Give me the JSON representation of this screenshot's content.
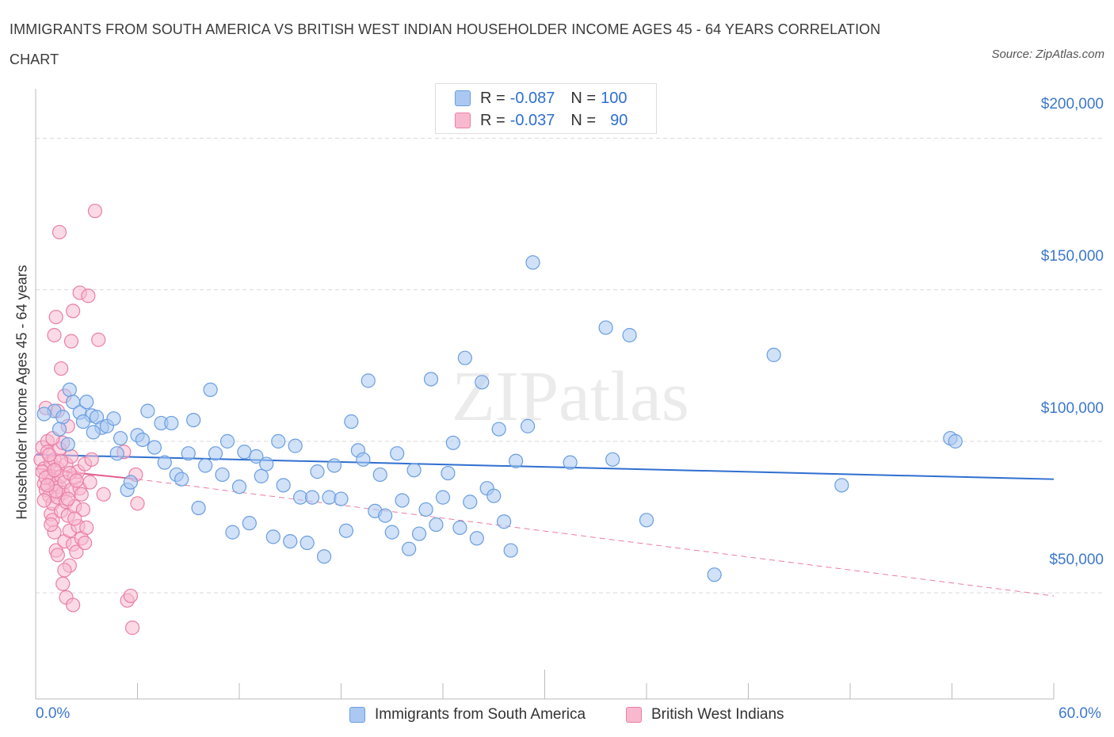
{
  "title": "IMMIGRANTS FROM SOUTH AMERICA VS BRITISH WEST INDIAN HOUSEHOLDER INCOME AGES 45 - 64 YEARS CORRELATION CHART",
  "source": "Source: ZipAtlas.com",
  "watermark": "ZIPatlas",
  "legend": {
    "r_label": "R =",
    "n_label": "N =",
    "rows": [
      {
        "r": "-0.087",
        "n": "100",
        "color": "#aac8f2"
      },
      {
        "r": "-0.037",
        "n": "90",
        "color": "#f8b9cf"
      }
    ]
  },
  "colors": {
    "blue_fill": "#aac8f2",
    "blue_stroke": "#6a9edf",
    "blue_line": "#2f6fd0",
    "pink_fill": "#f8b9cf",
    "pink_stroke": "#ea7fa6",
    "pink_line": "#e45b8d",
    "grid": "#d9d9d9",
    "tick_label": "#3d78cc"
  },
  "chart_data": {
    "type": "scatter",
    "xlabel": "",
    "ylabel": "Householder Income Ages 45 - 64 years",
    "xlim": [
      0,
      60
    ],
    "ylim": [
      15000,
      215000
    ],
    "x_tick_labels": [
      "0.0%",
      "60.0%"
    ],
    "y_ticks": [
      200000,
      150000,
      100000,
      50000
    ],
    "y_tick_labels": [
      "$200,000",
      "$150,000",
      "$100,000",
      "$50,000"
    ],
    "grid": "horizontal dashed",
    "legend_position": "top-center and bottom",
    "series": [
      {
        "name": "Immigrants from South America",
        "color": "#aac8f2",
        "trend": {
          "x": [
            0,
            60
          ],
          "y": [
            95600,
            87500
          ],
          "style": "solid"
        },
        "points": [
          [
            1.1,
            110000
          ],
          [
            1.6,
            108000
          ],
          [
            2.0,
            117000
          ],
          [
            2.2,
            113000
          ],
          [
            2.6,
            109500
          ],
          [
            3.0,
            113000
          ],
          [
            3.3,
            108500
          ],
          [
            3.6,
            108000
          ],
          [
            3.9,
            104500
          ],
          [
            4.2,
            105000
          ],
          [
            4.6,
            107500
          ],
          [
            5.0,
            101000
          ],
          [
            5.4,
            84000
          ],
          [
            5.6,
            86500
          ],
          [
            6.0,
            102000
          ],
          [
            6.3,
            100500
          ],
          [
            6.6,
            110000
          ],
          [
            7.0,
            98000
          ],
          [
            7.4,
            106000
          ],
          [
            7.6,
            93000
          ],
          [
            8.0,
            106000
          ],
          [
            8.3,
            89000
          ],
          [
            8.6,
            87500
          ],
          [
            9.0,
            96000
          ],
          [
            9.3,
            107000
          ],
          [
            9.6,
            78000
          ],
          [
            10.0,
            92000
          ],
          [
            10.3,
            117000
          ],
          [
            10.6,
            96000
          ],
          [
            11.0,
            89000
          ],
          [
            11.3,
            100000
          ],
          [
            11.6,
            70000
          ],
          [
            12.0,
            85000
          ],
          [
            12.3,
            96500
          ],
          [
            12.6,
            73000
          ],
          [
            13.0,
            95000
          ],
          [
            13.3,
            88500
          ],
          [
            13.6,
            92500
          ],
          [
            14.0,
            68500
          ],
          [
            14.3,
            100000
          ],
          [
            14.6,
            85500
          ],
          [
            15.0,
            67000
          ],
          [
            15.3,
            98500
          ],
          [
            15.6,
            81500
          ],
          [
            16.0,
            66500
          ],
          [
            16.3,
            81500
          ],
          [
            16.6,
            90000
          ],
          [
            17.0,
            62000
          ],
          [
            17.3,
            81500
          ],
          [
            17.6,
            92000
          ],
          [
            18.0,
            81000
          ],
          [
            18.3,
            70500
          ],
          [
            18.6,
            106500
          ],
          [
            19.0,
            97000
          ],
          [
            19.3,
            94000
          ],
          [
            19.6,
            120000
          ],
          [
            20.0,
            77000
          ],
          [
            20.3,
            89000
          ],
          [
            20.6,
            75500
          ],
          [
            21.0,
            70000
          ],
          [
            21.3,
            96000
          ],
          [
            21.6,
            80500
          ],
          [
            22.0,
            64500
          ],
          [
            22.3,
            90500
          ],
          [
            22.6,
            69500
          ],
          [
            23.0,
            77500
          ],
          [
            23.3,
            120500
          ],
          [
            23.6,
            72500
          ],
          [
            24.0,
            81500
          ],
          [
            24.3,
            89500
          ],
          [
            24.6,
            99500
          ],
          [
            25.0,
            71500
          ],
          [
            25.3,
            127500
          ],
          [
            25.6,
            80000
          ],
          [
            26.0,
            68000
          ],
          [
            26.3,
            119500
          ],
          [
            26.6,
            84500
          ],
          [
            27.0,
            82000
          ],
          [
            27.3,
            104000
          ],
          [
            27.6,
            73500
          ],
          [
            28.0,
            64000
          ],
          [
            28.3,
            93500
          ],
          [
            29.0,
            105000
          ],
          [
            29.3,
            159000
          ],
          [
            31.5,
            93000
          ],
          [
            33.6,
            137500
          ],
          [
            34.0,
            94000
          ],
          [
            35.0,
            135000
          ],
          [
            36.0,
            74000
          ],
          [
            40.0,
            56000
          ],
          [
            43.5,
            128500
          ],
          [
            47.5,
            85500
          ],
          [
            53.9,
            101000
          ],
          [
            54.2,
            100000
          ],
          [
            0.5,
            109000
          ],
          [
            1.4,
            104000
          ],
          [
            1.9,
            99000
          ],
          [
            2.8,
            106500
          ],
          [
            3.4,
            103000
          ],
          [
            4.8,
            96000
          ]
        ]
      },
      {
        "name": "British West Indians",
        "color": "#f8b9cf",
        "trend": {
          "x": [
            0,
            6
          ],
          "y": [
            91000,
            87500
          ],
          "style": "solid",
          "extended_x": [
            6,
            60
          ],
          "extended_y": [
            87500,
            49000
          ],
          "extended_style": "dashed"
        },
        "points": [
          [
            0.3,
            94000
          ],
          [
            0.4,
            98000
          ],
          [
            0.5,
            91000
          ],
          [
            0.5,
            86000
          ],
          [
            0.6,
            111000
          ],
          [
            0.6,
            84000
          ],
          [
            0.7,
            100000
          ],
          [
            0.7,
            96500
          ],
          [
            0.8,
            88500
          ],
          [
            0.8,
            82000
          ],
          [
            0.9,
            93000
          ],
          [
            0.9,
            76000
          ],
          [
            1.0,
            87500
          ],
          [
            1.0,
            79500
          ],
          [
            1.0,
            74000
          ],
          [
            1.1,
            135000
          ],
          [
            1.1,
            94000
          ],
          [
            1.1,
            70000
          ],
          [
            1.2,
            141000
          ],
          [
            1.2,
            86000
          ],
          [
            1.2,
            64000
          ],
          [
            1.3,
            110000
          ],
          [
            1.3,
            91000
          ],
          [
            1.3,
            81500
          ],
          [
            1.4,
            169000
          ],
          [
            1.4,
            97500
          ],
          [
            1.4,
            85000
          ],
          [
            1.5,
            124000
          ],
          [
            1.5,
            88500
          ],
          [
            1.5,
            77000
          ],
          [
            1.6,
            99500
          ],
          [
            1.6,
            83000
          ],
          [
            1.6,
            53000
          ],
          [
            1.7,
            115000
          ],
          [
            1.7,
            86500
          ],
          [
            1.7,
            67000
          ],
          [
            1.8,
            92500
          ],
          [
            1.8,
            80000
          ],
          [
            1.8,
            48500
          ],
          [
            1.9,
            105000
          ],
          [
            1.9,
            75500
          ],
          [
            2.0,
            70500
          ],
          [
            2.0,
            59000
          ],
          [
            2.1,
            133000
          ],
          [
            2.1,
            95000
          ],
          [
            2.1,
            84000
          ],
          [
            2.2,
            143000
          ],
          [
            2.2,
            66000
          ],
          [
            2.2,
            46000
          ],
          [
            2.3,
            88000
          ],
          [
            2.3,
            78500
          ],
          [
            2.4,
            63500
          ],
          [
            2.5,
            90000
          ],
          [
            2.5,
            72000
          ],
          [
            2.6,
            149000
          ],
          [
            2.6,
            84500
          ],
          [
            2.7,
            68000
          ],
          [
            2.8,
            77500
          ],
          [
            2.9,
            92500
          ],
          [
            3.0,
            71500
          ],
          [
            3.1,
            148000
          ],
          [
            3.3,
            94000
          ],
          [
            3.5,
            176000
          ],
          [
            3.7,
            133500
          ],
          [
            4.0,
            82500
          ],
          [
            5.2,
            96500
          ],
          [
            5.4,
            47500
          ],
          [
            5.6,
            49000
          ],
          [
            5.7,
            38500
          ],
          [
            5.9,
            89000
          ],
          [
            6.0,
            79500
          ],
          [
            0.4,
            90000
          ],
          [
            0.6,
            88000
          ],
          [
            0.8,
            95500
          ],
          [
            0.9,
            72500
          ],
          [
            1.0,
            101000
          ],
          [
            1.2,
            83500
          ],
          [
            1.3,
            62500
          ],
          [
            1.5,
            93500
          ],
          [
            1.7,
            57500
          ],
          [
            1.9,
            81000
          ],
          [
            2.0,
            89500
          ],
          [
            2.3,
            74500
          ],
          [
            2.4,
            87000
          ],
          [
            2.7,
            82500
          ],
          [
            2.9,
            66500
          ],
          [
            3.2,
            86500
          ],
          [
            0.5,
            80500
          ],
          [
            0.7,
            85500
          ],
          [
            1.1,
            90500
          ]
        ]
      }
    ]
  }
}
